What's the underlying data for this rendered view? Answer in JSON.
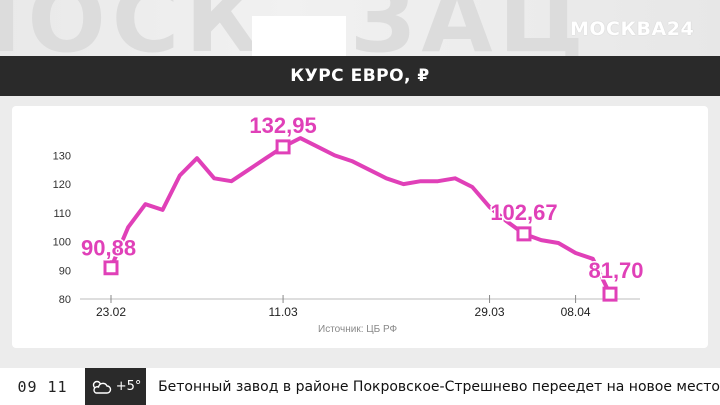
{
  "brand": {
    "logo": "МОСКВА24"
  },
  "ticker": {
    "time": "09 11",
    "temperature": "+5°",
    "weather_icon": "cloud-sun-icon",
    "headline": "Бетонный завод в районе Покровское-Стрешнево переедет на новое место"
  },
  "colors": {
    "accent": "#e040b8",
    "title_bar": "#2a2a2a"
  },
  "chart_data": {
    "type": "line",
    "title": "КУРС ЕВРО, ₽",
    "source": "Источник: ЦБ РФ",
    "yticks": [
      80,
      90,
      100,
      110,
      120,
      130
    ],
    "ylim": [
      80,
      135
    ],
    "xticks": [
      {
        "label": "23.02",
        "index": 0
      },
      {
        "label": "11.03",
        "index": 10
      },
      {
        "label": "29.03",
        "index": 22
      },
      {
        "label": "08.04",
        "index": 27
      }
    ],
    "series": [
      {
        "values": [
          90.88,
          105,
          113,
          111,
          123,
          129,
          122,
          121,
          125,
          129,
          132.95,
          136,
          133,
          130,
          128,
          125,
          122,
          120,
          121,
          121,
          122,
          119,
          112,
          107,
          102.67,
          100.5,
          99.5,
          96,
          94,
          81.7
        ]
      }
    ],
    "annotations": [
      {
        "text": "90,88",
        "index": 0,
        "value": 90.88
      },
      {
        "text": "132,95",
        "index": 10,
        "value": 132.95
      },
      {
        "text": "102,67",
        "index": 24,
        "value": 102.67
      },
      {
        "text": "81,70",
        "index": 29,
        "value": 81.7
      }
    ],
    "grid": false
  }
}
